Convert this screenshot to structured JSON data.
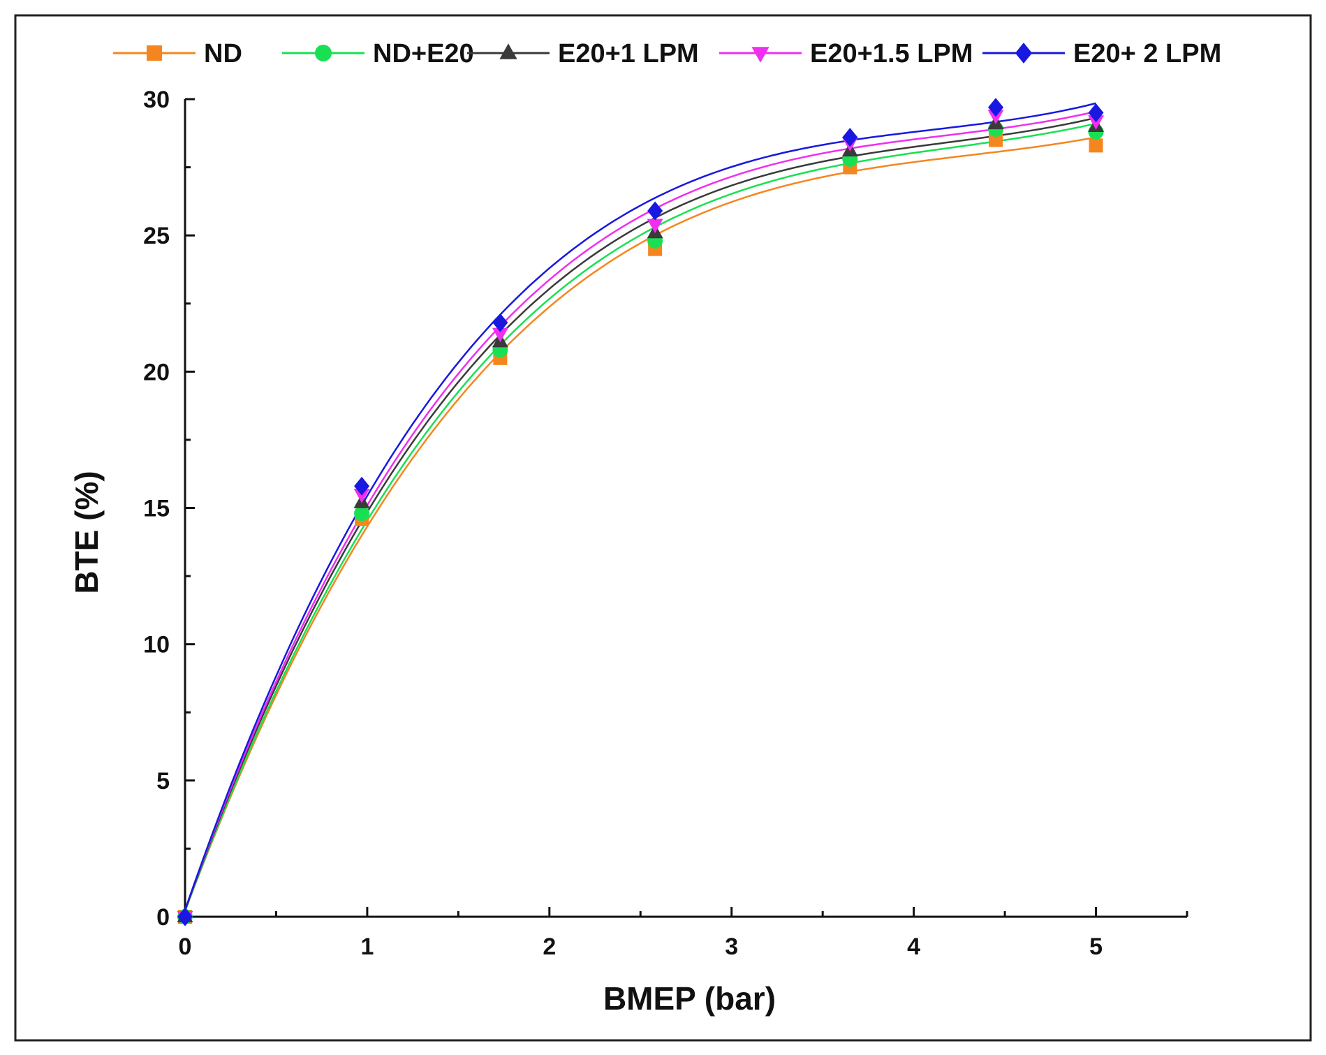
{
  "chart_data": {
    "type": "line",
    "title": "",
    "xlabel": "BMEP (bar)",
    "ylabel": "BTE (%)",
    "xlim": [
      0,
      5.5
    ],
    "ylim": [
      0,
      30
    ],
    "xticks": [
      0,
      1,
      2,
      3,
      4,
      5
    ],
    "yticks": [
      0,
      5,
      10,
      15,
      20,
      25,
      30
    ],
    "legend_position": "top",
    "series": [
      {
        "name": "ND",
        "color": "#f5861f",
        "marker": "square",
        "x": [
          0,
          0.97,
          1.73,
          2.58,
          3.65,
          4.45,
          5.0
        ],
        "y": [
          0,
          14.6,
          20.5,
          24.5,
          27.5,
          28.5,
          28.3
        ]
      },
      {
        "name": "ND+E20",
        "color": "#19e053",
        "marker": "circle",
        "x": [
          0,
          0.97,
          1.73,
          2.58,
          3.65,
          4.45,
          5.0
        ],
        "y": [
          0,
          14.8,
          20.8,
          24.8,
          27.8,
          28.9,
          28.8
        ]
      },
      {
        "name": "E20+1 LPM",
        "color": "#3a3a3a",
        "marker": "triangle-up",
        "x": [
          0,
          0.97,
          1.73,
          2.58,
          3.65,
          4.45,
          5.0
        ],
        "y": [
          0,
          15.2,
          21.1,
          25.1,
          28.1,
          29.1,
          29.0
        ]
      },
      {
        "name": "E20+1.5 LPM",
        "color": "#f02ef0",
        "marker": "triangle-down",
        "x": [
          0,
          0.97,
          1.73,
          2.58,
          3.65,
          4.45,
          5.0
        ],
        "y": [
          0,
          15.5,
          21.4,
          25.4,
          28.4,
          29.4,
          29.2
        ]
      },
      {
        "name": "E20+ 2 LPM",
        "color": "#1818e0",
        "marker": "diamond",
        "x": [
          0,
          0.97,
          1.73,
          2.58,
          3.65,
          4.45,
          5.0
        ],
        "y": [
          0,
          15.8,
          21.8,
          25.9,
          28.6,
          29.7,
          29.5
        ]
      }
    ]
  }
}
